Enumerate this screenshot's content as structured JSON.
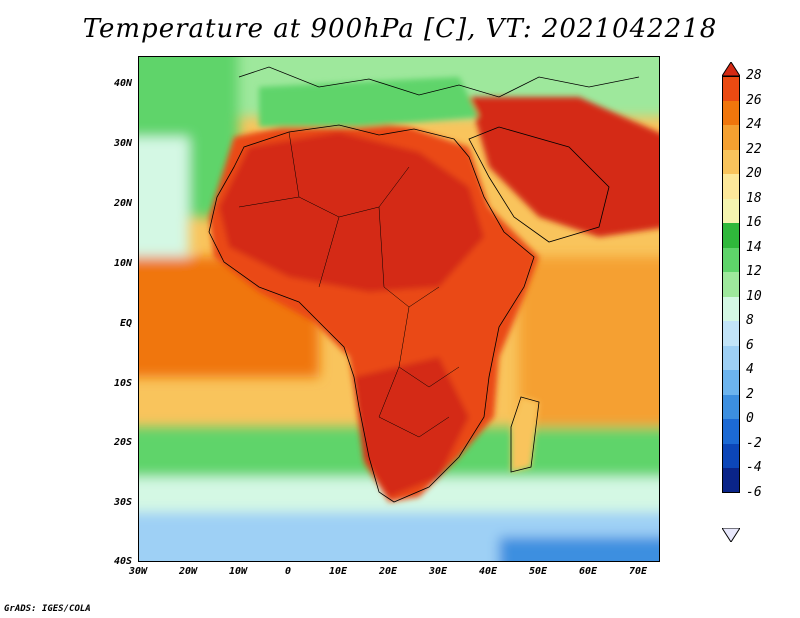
{
  "title": "Temperature at 900hPa [C], VT: 2021042218",
  "footer": "GrADS: IGES/COLA",
  "lat_labels": [
    "40N",
    "30N",
    "20N",
    "10N",
    "EQ",
    "10S",
    "20S",
    "30S",
    "40S"
  ],
  "lon_labels": [
    "30W",
    "20W",
    "10W",
    "0",
    "10E",
    "20E",
    "30E",
    "40E",
    "50E",
    "60E",
    "70E"
  ],
  "colorbar": {
    "labels": [
      "28",
      "26",
      "24",
      "22",
      "20",
      "18",
      "16",
      "14",
      "12",
      "10",
      "8",
      "6",
      "4",
      "2",
      "0",
      "-2",
      "-4",
      "-6"
    ],
    "colors": [
      "#d42a14",
      "#ea4a12",
      "#f0760c",
      "#f5a030",
      "#f9c45c",
      "#fde89a",
      "#f5f5b0",
      "#2fb83b",
      "#5ed46a",
      "#9ee89c",
      "#d4f8e4",
      "#c2e4f8",
      "#9ed0f5",
      "#6cb4ee",
      "#3c8fe0",
      "#1c6ad4",
      "#0c46b8",
      "#0a2488",
      "#e8e8fc"
    ]
  }
}
